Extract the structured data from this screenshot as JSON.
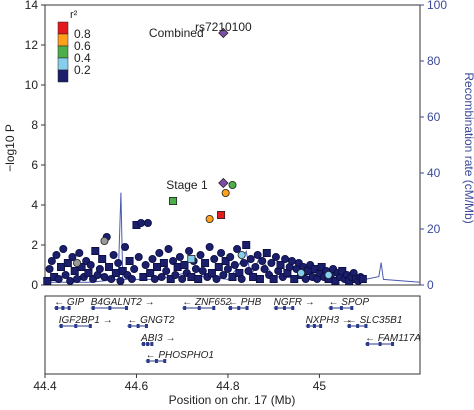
{
  "chart_data": {
    "type": "scatter",
    "title": "",
    "xlabel": "Position on chr. 17 (Mb)",
    "ylabel": "−log10 P",
    "y2label": "Recombination rate (cM/Mb)",
    "xlim": [
      44.4,
      45.22
    ],
    "ylim": [
      0,
      14
    ],
    "y2lim": [
      0,
      100
    ],
    "xticks": [
      "44.4",
      "44.6",
      "44.8",
      "45"
    ],
    "xtick_values": [
      44.4,
      44.6,
      44.8,
      45.0
    ],
    "yticks": [
      "0",
      "2",
      "4",
      "6",
      "8",
      "10",
      "12",
      "14"
    ],
    "y2ticks": [
      "0",
      "20",
      "40",
      "60",
      "80",
      "100"
    ],
    "legend": {
      "title": "r²",
      "placement": "top-left",
      "entries": [
        {
          "label": "0.8",
          "color": "#e41a1c"
        },
        {
          "label": "0.6",
          "color": "#ff9f1c"
        },
        {
          "label": "0.4",
          "color": "#4daf4a"
        },
        {
          "label": "0.2",
          "color": "#87ceeb"
        },
        {
          "label": "",
          "color": "#1b1f6b"
        }
      ]
    },
    "annotations": [
      {
        "text": "rs7210100",
        "x": 44.79,
        "y": 13.2
      },
      {
        "text": "Combined",
        "x": 44.76,
        "y": 12.6
      },
      {
        "text": "Stage 1",
        "x": 44.76,
        "y": 5.0
      }
    ],
    "highlighted_points": [
      {
        "name": "Combined",
        "x": 44.79,
        "y": 12.6,
        "shape": "diamond",
        "color": "#7b4ea3"
      },
      {
        "name": "Stage 1",
        "x": 44.79,
        "y": 5.1,
        "shape": "diamond",
        "color": "#7b4ea3"
      },
      {
        "name": "",
        "x": 44.81,
        "y": 5.0,
        "shape": "circle",
        "color": "#4daf4a"
      },
      {
        "name": "",
        "x": 44.795,
        "y": 4.6,
        "shape": "circle",
        "color": "#ff9f1c"
      },
      {
        "name": "",
        "x": 44.68,
        "y": 4.2,
        "shape": "square",
        "color": "#4daf4a"
      },
      {
        "name": "",
        "x": 44.76,
        "y": 3.3,
        "shape": "circle",
        "color": "#ff9f1c"
      },
      {
        "name": "",
        "x": 44.785,
        "y": 3.5,
        "shape": "square",
        "color": "#e41a1c"
      },
      {
        "name": "",
        "x": 44.83,
        "y": 1.5,
        "shape": "circle",
        "color": "#87ceeb"
      },
      {
        "name": "",
        "x": 44.72,
        "y": 1.3,
        "shape": "square",
        "color": "#87ceeb"
      },
      {
        "name": "",
        "x": 44.47,
        "y": 1.1,
        "shape": "circle",
        "color": "#999999"
      },
      {
        "name": "",
        "x": 44.53,
        "y": 2.2,
        "shape": "circle",
        "color": "#999999"
      },
      {
        "name": "",
        "x": 44.96,
        "y": 0.6,
        "shape": "circle",
        "color": "#87ceeb"
      },
      {
        "name": "",
        "x": 45.02,
        "y": 0.5,
        "shape": "circle",
        "color": "#87ceeb"
      }
    ],
    "background_points": [
      [
        44.405,
        0.2
      ],
      [
        44.41,
        0.8
      ],
      [
        44.415,
        1.2
      ],
      [
        44.42,
        0.4
      ],
      [
        44.425,
        1.5
      ],
      [
        44.43,
        0.3
      ],
      [
        44.435,
        0.9
      ],
      [
        44.44,
        1.8
      ],
      [
        44.445,
        0.5
      ],
      [
        44.45,
        1.1
      ],
      [
        44.455,
        0.2
      ],
      [
        44.46,
        1.4
      ],
      [
        44.465,
        0.7
      ],
      [
        44.47,
        0.3
      ],
      [
        44.475,
        1.6
      ],
      [
        44.48,
        0.9
      ],
      [
        44.485,
        0.4
      ],
      [
        44.49,
        1.2
      ],
      [
        44.495,
        0.6
      ],
      [
        44.5,
        1.0
      ],
      [
        44.505,
        0.3
      ],
      [
        44.51,
        1.7
      ],
      [
        44.515,
        0.5
      ],
      [
        44.52,
        0.8
      ],
      [
        44.525,
        1.3
      ],
      [
        44.53,
        0.4
      ],
      [
        44.535,
        2.4
      ],
      [
        44.54,
        0.9
      ],
      [
        44.545,
        0.3
      ],
      [
        44.55,
        1.5
      ],
      [
        44.555,
        0.6
      ],
      [
        44.56,
        1.1
      ],
      [
        44.565,
        0.2
      ],
      [
        44.57,
        0.7
      ],
      [
        44.575,
        1.9
      ],
      [
        44.58,
        0.5
      ],
      [
        44.585,
        1.2
      ],
      [
        44.59,
        0.3
      ],
      [
        44.595,
        0.8
      ],
      [
        44.6,
        3.0
      ],
      [
        44.605,
        1.4
      ],
      [
        44.61,
        3.1
      ],
      [
        44.615,
        0.4
      ],
      [
        44.62,
        1.0
      ],
      [
        44.625,
        3.1
      ],
      [
        44.63,
        0.6
      ],
      [
        44.635,
        1.3
      ],
      [
        44.64,
        0.3
      ],
      [
        44.645,
        0.9
      ],
      [
        44.65,
        1.6
      ],
      [
        44.655,
        0.4
      ],
      [
        44.66,
        1.1
      ],
      [
        44.665,
        0.7
      ],
      [
        44.67,
        1.8
      ],
      [
        44.675,
        0.3
      ],
      [
        44.68,
        1.2
      ],
      [
        44.685,
        0.5
      ],
      [
        44.69,
        0.9
      ],
      [
        44.695,
        1.4
      ],
      [
        44.7,
        0.3
      ],
      [
        44.705,
        1.0
      ],
      [
        44.71,
        0.6
      ],
      [
        44.715,
        1.7
      ],
      [
        44.72,
        0.4
      ],
      [
        44.725,
        1.2
      ],
      [
        44.73,
        0.8
      ],
      [
        44.735,
        0.3
      ],
      [
        44.74,
        1.5
      ],
      [
        44.745,
        0.7
      ],
      [
        44.75,
        1.1
      ],
      [
        44.755,
        0.4
      ],
      [
        44.76,
        1.9
      ],
      [
        44.765,
        0.6
      ],
      [
        44.77,
        1.3
      ],
      [
        44.775,
        0.3
      ],
      [
        44.78,
        0.9
      ],
      [
        44.785,
        1.6
      ],
      [
        44.79,
        0.5
      ],
      [
        44.795,
        1.2
      ],
      [
        44.8,
        0.8
      ],
      [
        44.805,
        1.4
      ],
      [
        44.81,
        0.4
      ],
      [
        44.815,
        1.0
      ],
      [
        44.82,
        1.8
      ],
      [
        44.825,
        0.6
      ],
      [
        44.83,
        0.3
      ],
      [
        44.835,
        1.1
      ],
      [
        44.84,
        2.0
      ],
      [
        44.845,
        0.7
      ],
      [
        44.85,
        1.3
      ],
      [
        44.855,
        0.4
      ],
      [
        44.86,
        0.9
      ],
      [
        44.865,
        1.5
      ],
      [
        44.87,
        0.3
      ],
      [
        44.875,
        1.2
      ],
      [
        44.88,
        0.8
      ],
      [
        44.885,
        1.6
      ],
      [
        44.89,
        0.5
      ],
      [
        44.895,
        1.1
      ],
      [
        44.9,
        0.3
      ],
      [
        44.905,
        1.4
      ],
      [
        44.91,
        0.7
      ],
      [
        44.915,
        1.0
      ],
      [
        44.92,
        0.4
      ],
      [
        44.925,
        1.3
      ],
      [
        44.93,
        0.6
      ],
      [
        44.935,
        0.9
      ],
      [
        44.94,
        1.2
      ],
      [
        44.945,
        0.3
      ],
      [
        44.95,
        0.8
      ],
      [
        44.955,
        1.1
      ],
      [
        44.96,
        0.5
      ],
      [
        44.965,
        0.9
      ],
      [
        44.97,
        0.3
      ],
      [
        44.975,
        0.7
      ],
      [
        44.98,
        1.0
      ],
      [
        44.985,
        0.4
      ],
      [
        44.99,
        0.8
      ],
      [
        44.995,
        0.3
      ],
      [
        45.0,
        0.6
      ],
      [
        45.005,
        0.9
      ],
      [
        45.01,
        0.4
      ],
      [
        45.015,
        0.7
      ],
      [
        45.02,
        0.3
      ],
      [
        45.025,
        0.5
      ],
      [
        45.03,
        0.8
      ],
      [
        45.035,
        0.2
      ],
      [
        45.04,
        0.6
      ],
      [
        45.045,
        0.4
      ],
      [
        45.05,
        0.7
      ],
      [
        45.055,
        0.3
      ],
      [
        45.06,
        0.5
      ],
      [
        45.065,
        0.2
      ],
      [
        45.07,
        0.4
      ],
      [
        45.075,
        0.6
      ],
      [
        45.08,
        0.3
      ],
      [
        45.085,
        0.2
      ],
      [
        45.09,
        0.4
      ],
      [
        45.095,
        0.3
      ]
    ],
    "recombination_rate": [
      [
        44.4,
        1
      ],
      [
        44.5,
        1
      ],
      [
        44.56,
        2
      ],
      [
        44.566,
        33
      ],
      [
        44.57,
        2
      ],
      [
        44.65,
        2
      ],
      [
        44.7,
        4
      ],
      [
        44.75,
        3
      ],
      [
        44.8,
        2
      ],
      [
        44.82,
        6
      ],
      [
        44.84,
        12
      ],
      [
        44.85,
        3
      ],
      [
        44.87,
        10
      ],
      [
        44.9,
        3
      ],
      [
        45.0,
        2
      ],
      [
        45.1,
        2
      ],
      [
        45.13,
        3
      ],
      [
        45.135,
        8
      ],
      [
        45.14,
        2
      ],
      [
        45.22,
        1
      ]
    ],
    "genes": [
      {
        "name": "GIP",
        "start": 44.42,
        "end": 44.45,
        "strand": "-",
        "row": 0
      },
      {
        "name": "B4GALNT2",
        "start": 44.5,
        "end": 44.58,
        "strand": "+",
        "row": 0
      },
      {
        "name": "ZNF652",
        "start": 44.7,
        "end": 44.77,
        "strand": "-",
        "row": 0
      },
      {
        "name": "PHB",
        "start": 44.8,
        "end": 44.84,
        "strand": "-",
        "row": 0
      },
      {
        "name": "NGFR",
        "start": 44.9,
        "end": 44.94,
        "strand": "+",
        "row": 0
      },
      {
        "name": "SPOP",
        "start": 45.02,
        "end": 45.07,
        "strand": "-",
        "row": 0
      },
      {
        "name": "IGF2BP1",
        "start": 44.43,
        "end": 44.5,
        "strand": "+",
        "row": 1
      },
      {
        "name": "GNGT2",
        "start": 44.58,
        "end": 44.62,
        "strand": "-",
        "row": 1
      },
      {
        "name": "NXPH3",
        "start": 44.97,
        "end": 45.0,
        "strand": "+",
        "row": 1
      },
      {
        "name": "SLC35B1",
        "start": 45.06,
        "end": 45.1,
        "strand": "-",
        "row": 1
      },
      {
        "name": "ABI3",
        "start": 44.61,
        "end": 44.63,
        "strand": "+",
        "row": 2
      },
      {
        "name": "FAM117A",
        "start": 45.1,
        "end": 45.16,
        "strand": "-",
        "row": 2
      },
      {
        "name": "PHOSPHO1",
        "start": 44.62,
        "end": 44.66,
        "strand": "-",
        "row": 3
      }
    ]
  }
}
